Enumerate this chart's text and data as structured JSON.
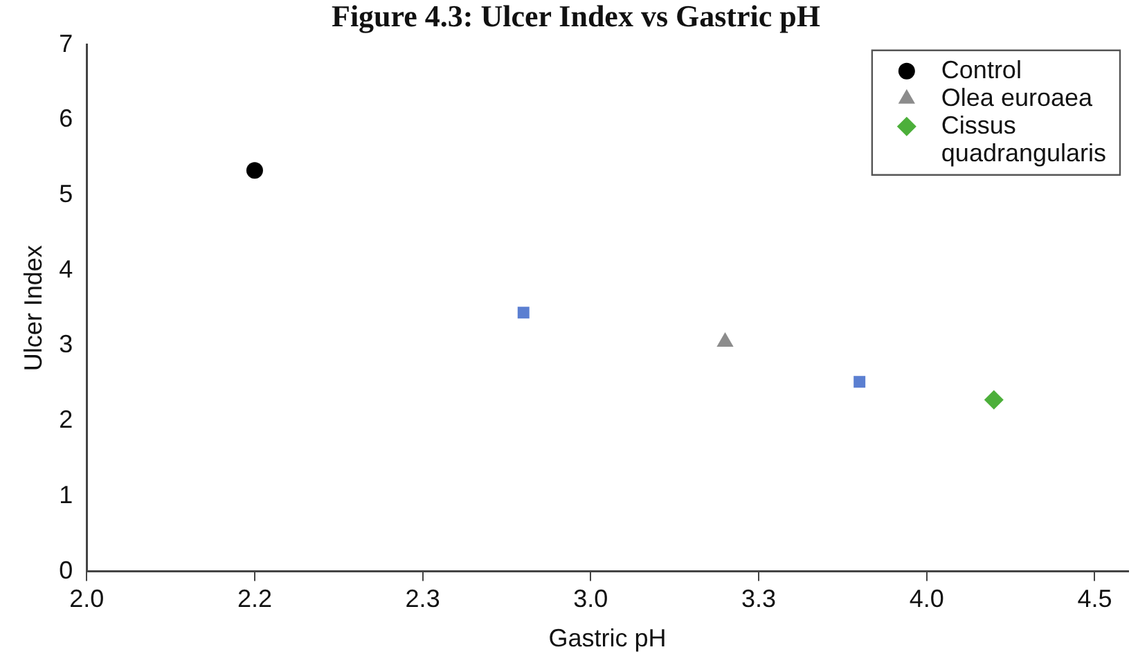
{
  "chart_data": {
    "type": "scatter",
    "title": "Figure 4.3: Ulcer Index vs Gastric pH",
    "xlabel": "Gastric pH",
    "ylabel": "Ulcer Index",
    "categories": [
      "2.0",
      null,
      null,
      null,
      null,
      "2.2",
      null,
      null,
      null,
      null,
      "2.3",
      null,
      null,
      null,
      null,
      "3.0",
      null,
      null,
      null,
      null,
      "3.3",
      null,
      null,
      null,
      null,
      "4.0",
      null,
      null,
      null,
      null,
      "4.5",
      null
    ],
    "ylim": [
      0,
      7
    ],
    "yticks": [
      0,
      1,
      2,
      3,
      4,
      5,
      6,
      7
    ],
    "grid": false,
    "legend": "top right",
    "series": [
      {
        "name": "Control",
        "color": "#000000",
        "marker": "circle",
        "values": [
          null,
          null,
          null,
          null,
          null,
          5.33,
          null,
          null,
          null,
          null,
          null,
          null,
          null,
          null,
          null,
          null,
          null,
          null,
          null,
          null,
          null,
          null,
          null,
          null,
          null,
          null,
          null,
          null,
          null,
          null,
          null,
          null
        ]
      },
      {
        "color": "#5b7fd1",
        "marker": "square",
        "values": [
          null,
          null,
          null,
          null,
          null,
          null,
          null,
          null,
          null,
          null,
          null,
          null,
          null,
          3.44,
          null,
          null,
          null,
          null,
          null,
          null,
          null,
          null,
          null,
          2.52,
          null,
          null,
          null,
          null,
          null,
          null,
          null,
          null
        ]
      },
      {
        "name": "Olea euroaea",
        "color": "#8c8c8c",
        "marker": "triangle",
        "values": [
          null,
          null,
          null,
          null,
          null,
          null,
          null,
          null,
          null,
          null,
          null,
          null,
          null,
          null,
          null,
          null,
          null,
          null,
          null,
          3.05,
          null,
          null,
          null,
          null,
          null,
          null,
          null,
          null,
          null,
          null,
          null,
          null
        ]
      },
      {
        "name": "Cissus quadrangularis",
        "color": "#4caf3a",
        "marker": "diamond",
        "values": [
          null,
          null,
          null,
          null,
          null,
          null,
          null,
          null,
          null,
          null,
          null,
          null,
          null,
          null,
          null,
          null,
          null,
          null,
          null,
          null,
          null,
          null,
          null,
          null,
          null,
          null,
          null,
          2.28,
          null,
          null,
          null,
          null
        ]
      }
    ]
  }
}
